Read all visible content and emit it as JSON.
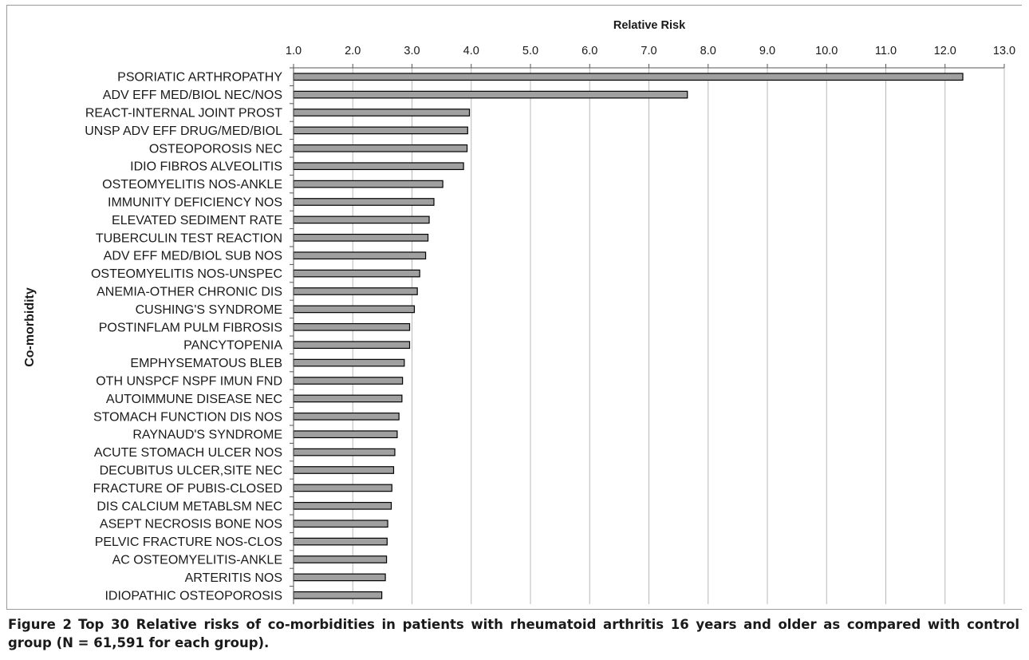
{
  "chart_data": {
    "type": "bar",
    "orientation": "horizontal",
    "xlabel": "Relative Risk",
    "ylabel": "Co-morbidity",
    "xlim": [
      1.0,
      13.0
    ],
    "xticks": [
      "1.0",
      "2.0",
      "3.0",
      "4.0",
      "5.0",
      "6.0",
      "7.0",
      "8.0",
      "9.0",
      "10.0",
      "11.0",
      "12.0",
      "13.0"
    ],
    "xaxis_position": "top",
    "grid": "vertical",
    "bar_color": "#a0a0a0",
    "categories": [
      "PSORIATIC ARTHROPATHY",
      "ADV EFF MED/BIOL NEC/NOS",
      "REACT-INTERNAL JOINT PROST",
      "UNSP ADV EFF DRUG/MED/BIOL",
      "OSTEOPOROSIS NEC",
      "IDIO FIBROS ALVEOLITIS",
      "OSTEOMYELITIS NOS-ANKLE",
      "IMMUNITY DEFICIENCY NOS",
      "ELEVATED SEDIMENT RATE",
      "TUBERCULIN TEST REACTION",
      "ADV EFF MED/BIOL SUB NOS",
      "OSTEOMYELITIS NOS-UNSPEC",
      "ANEMIA-OTHER CHRONIC DIS",
      "CUSHING'S SYNDROME",
      "POSTINFLAM PULM FIBROSIS",
      "PANCYTOPENIA",
      "EMPHYSEMATOUS BLEB",
      "OTH UNSPCF NSPF IMUN FND",
      "AUTOIMMUNE DISEASE NEC",
      "STOMACH FUNCTION DIS NOS",
      "RAYNAUD'S SYNDROME",
      "ACUTE STOMACH ULCER NOS",
      "DECUBITUS ULCER,SITE NEC",
      "FRACTURE OF PUBIS-CLOSED",
      "DIS CALCIUM METABLSM NEC",
      "ASEPT NECROSIS BONE NOS",
      "PELVIC FRACTURE NOS-CLOS",
      "AC OSTEOMYELITIS-ANKLE",
      "ARTERITIS NOS",
      "IDIOPATHIC OSTEOPOROSIS"
    ],
    "values": [
      12.3,
      7.65,
      3.97,
      3.94,
      3.93,
      3.87,
      3.52,
      3.37,
      3.29,
      3.27,
      3.23,
      3.13,
      3.09,
      3.04,
      2.96,
      2.96,
      2.87,
      2.84,
      2.83,
      2.78,
      2.75,
      2.71,
      2.69,
      2.66,
      2.65,
      2.59,
      2.58,
      2.57,
      2.55,
      2.49
    ]
  },
  "caption": {
    "label": "Figure 2",
    "text": "Top 30 Relative risks of co-morbidities in patients with rheumatoid arthritis 16 years and older as compared with control group (N = 61,591 for each group)."
  }
}
